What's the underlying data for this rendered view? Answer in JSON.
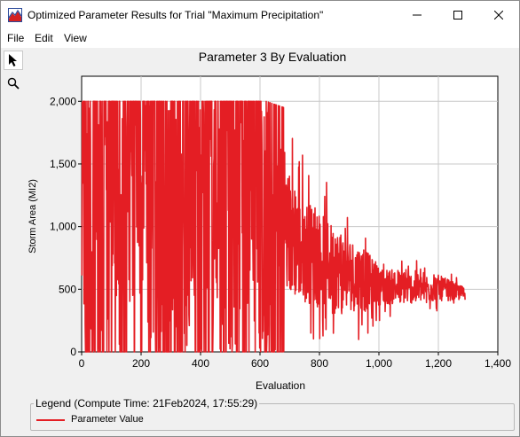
{
  "window": {
    "title": "Optimized Parameter Results for Trial \"Maximum Precipitation\"",
    "minimize_icon": "minimize-icon",
    "maximize_icon": "maximize-icon",
    "close_icon": "close-icon"
  },
  "menu": {
    "items": [
      "File",
      "Edit",
      "View"
    ]
  },
  "tools": [
    {
      "name": "pointer-icon",
      "active": true
    },
    {
      "name": "zoom-icon",
      "active": false
    }
  ],
  "legend": {
    "title": "Legend (Compute Time: 21Feb2024, 17:55:29)",
    "items": [
      {
        "label": "Parameter Value",
        "color": "#e41e24"
      }
    ]
  },
  "chart_data": {
    "type": "line",
    "title": "Parameter 3 By Evaluation",
    "xlabel": "Evaluation",
    "ylabel": "Storm Area (MI2)",
    "xlim": [
      0,
      1400
    ],
    "ylim": [
      0,
      2200
    ],
    "xticks": [
      "0",
      "200",
      "400",
      "600",
      "800",
      "1,000",
      "1,200",
      "1,400"
    ],
    "xtick_values": [
      0,
      200,
      400,
      600,
      800,
      1000,
      1200,
      1400
    ],
    "yticks": [
      "0",
      "500",
      "1,000",
      "1,500",
      "2,000"
    ],
    "ytick_values": [
      0,
      500,
      1000,
      1500,
      2000
    ],
    "grid": true,
    "line_color": "#e41e24",
    "series": [
      {
        "name": "Parameter Value",
        "x_range": [
          1,
          1290
        ],
        "envelope": [
          {
            "x": 0,
            "min": 0,
            "max": 2000
          },
          {
            "x": 60,
            "min": 0,
            "max": 2000
          },
          {
            "x": 300,
            "min": 0,
            "max": 2000
          },
          {
            "x": 480,
            "min": 0,
            "max": 2000
          },
          {
            "x": 620,
            "min": 0,
            "max": 2000
          },
          {
            "x": 680,
            "min": 0,
            "max": 1950
          },
          {
            "x": 760,
            "min": 50,
            "max": 1550
          },
          {
            "x": 860,
            "min": 80,
            "max": 1250
          },
          {
            "x": 950,
            "min": 100,
            "max": 1050
          },
          {
            "x": 1000,
            "min": 250,
            "max": 800
          },
          {
            "x": 1100,
            "min": 280,
            "max": 740
          },
          {
            "x": 1200,
            "min": 320,
            "max": 700
          },
          {
            "x": 1290,
            "min": 370,
            "max": 560
          }
        ]
      }
    ]
  }
}
